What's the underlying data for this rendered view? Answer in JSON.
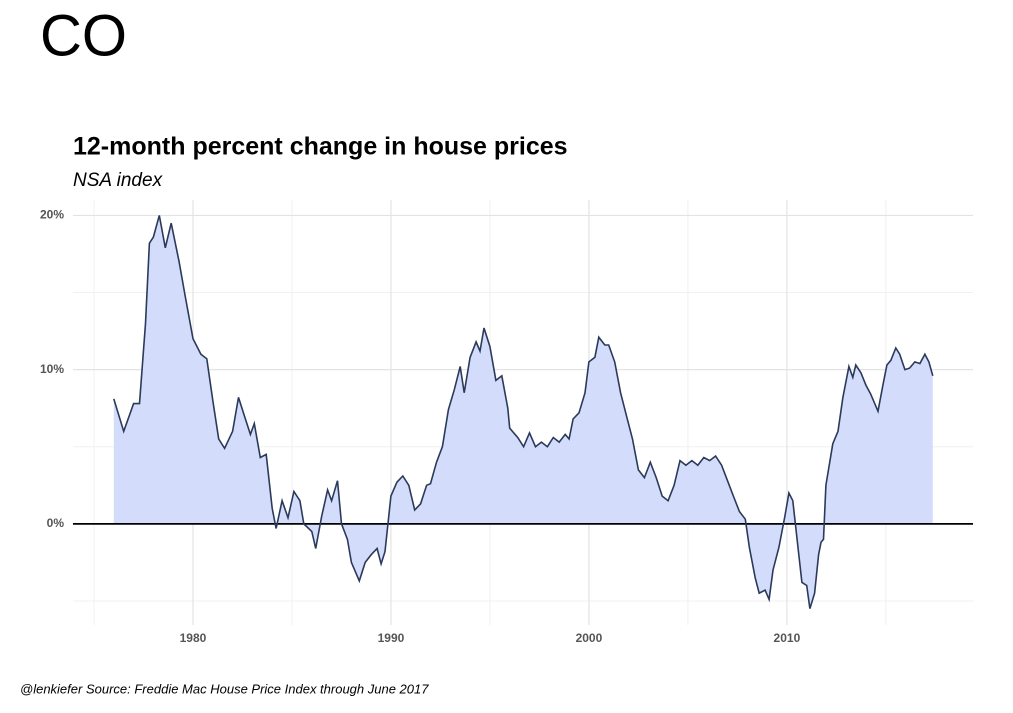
{
  "page_title": "CO",
  "chart_data": {
    "type": "area",
    "title": "12-month percent change in house prices",
    "subtitle": "NSA index",
    "caption": "@lenkiefer Source: Freddie Mac House Price Index through June 2017",
    "x": [
      1976.0,
      1976.5,
      1977.0,
      1977.3,
      1977.6,
      1977.8,
      1978.0,
      1978.3,
      1978.6,
      1978.9,
      1979.3,
      1979.6,
      1980.0,
      1980.4,
      1980.7,
      1981.0,
      1981.3,
      1981.6,
      1982.0,
      1982.3,
      1982.6,
      1982.9,
      1983.1,
      1983.4,
      1983.7,
      1984.0,
      1984.2,
      1984.5,
      1984.8,
      1985.1,
      1985.4,
      1985.6,
      1986.0,
      1986.2,
      1986.5,
      1986.8,
      1987.0,
      1987.3,
      1987.5,
      1987.8,
      1988.0,
      1988.4,
      1988.7,
      1989.0,
      1989.3,
      1989.5,
      1989.7,
      1990.0,
      1990.3,
      1990.6,
      1990.9,
      1991.2,
      1991.5,
      1991.8,
      1992.0,
      1992.3,
      1992.6,
      1992.9,
      1993.2,
      1993.5,
      1993.7,
      1994.0,
      1994.3,
      1994.5,
      1994.7,
      1995.0,
      1995.3,
      1995.6,
      1995.9,
      1996.0,
      1996.4,
      1996.7,
      1997.0,
      1997.3,
      1997.6,
      1997.9,
      1998.2,
      1998.5,
      1998.8,
      1999.0,
      1999.2,
      1999.5,
      1999.8,
      2000.0,
      2000.3,
      2000.5,
      2000.8,
      2001.0,
      2001.3,
      2001.6,
      2001.9,
      2002.2,
      2002.5,
      2002.8,
      2003.1,
      2003.4,
      2003.7,
      2004.0,
      2004.3,
      2004.6,
      2004.9,
      2005.2,
      2005.5,
      2005.8,
      2006.1,
      2006.4,
      2006.7,
      2007.0,
      2007.3,
      2007.6,
      2007.9,
      2008.1,
      2008.4,
      2008.6,
      2008.9,
      2009.1,
      2009.3,
      2009.6,
      2009.9,
      2010.1,
      2010.3,
      2010.6,
      2010.76,
      2011.0,
      2011.16,
      2011.4,
      2011.6,
      2011.72,
      2011.85,
      2011.97,
      2012.32,
      2012.58,
      2012.83,
      2013.13,
      2013.33,
      2013.48,
      2013.74,
      2013.99,
      2014.24,
      2014.6,
      2014.85,
      2015.05,
      2015.25,
      2015.5,
      2015.7,
      2015.96,
      2016.2,
      2016.46,
      2016.72,
      2016.97,
      2017.17,
      2017.37
    ],
    "series": [
      {
        "name": "CO",
        "color": "#2b3a5a",
        "fill": "#d3dcfa",
        "values": [
          8.1,
          6.0,
          7.8,
          7.8,
          13,
          18.2,
          18.6,
          20.0,
          17.9,
          19.5,
          17,
          14.8,
          12,
          11,
          10.7,
          8,
          5.5,
          4.9,
          6,
          8.2,
          7.0,
          5.8,
          6.5,
          4.3,
          4.5,
          1.0,
          -0.3,
          1.5,
          0.4,
          2.1,
          1.5,
          0,
          -0.5,
          -1.6,
          0.5,
          2.2,
          1.5,
          2.8,
          0,
          -1.0,
          -2.5,
          -3.7,
          -2.5,
          -2,
          -1.6,
          -2.6,
          -1.8,
          1.8,
          2.7,
          3.1,
          2.5,
          0.9,
          1.3,
          2.5,
          2.6,
          4.0,
          5.0,
          7.4,
          8.7,
          10.2,
          8.5,
          10.8,
          11.8,
          11.2,
          12.7,
          11.5,
          9.3,
          9.6,
          7.5,
          6.2,
          5.6,
          5.0,
          5.9,
          5.0,
          5.3,
          5.0,
          5.6,
          5.3,
          5.8,
          5.5,
          6.8,
          7.2,
          8.5,
          10.5,
          10.8,
          12.1,
          11.6,
          11.6,
          10.5,
          8.5,
          7.0,
          5.5,
          3.5,
          3.0,
          4.0,
          3.0,
          1.8,
          1.5,
          2.5,
          4.1,
          3.8,
          4.1,
          3.8,
          4.3,
          4.1,
          4.4,
          3.8,
          2.8,
          1.8,
          0.8,
          0.3,
          -1.5,
          -3.5,
          -4.5,
          -4.3,
          -4.9,
          -3.0,
          -1.5,
          0.5,
          2.0,
          1.5,
          -2,
          -3.8,
          -4.0,
          -5.5,
          -4.5,
          -2.0,
          -1.2,
          -1.0,
          2.5,
          5.2,
          6.0,
          8.2,
          10.2,
          9.5,
          10.3,
          9.8,
          9.0,
          8.4,
          7.3,
          9.0,
          10.3,
          10.6,
          11.4,
          11.0,
          10.0,
          10.1,
          10.5,
          10.4,
          11.0,
          10.5,
          9.6
        ]
      }
    ],
    "xlim": [
      1973.94,
      2019.4
    ],
    "xticks": [
      1980,
      1990,
      2000,
      2010
    ],
    "xminor": [
      1975,
      1985,
      1995,
      2005,
      2015
    ],
    "ylim": [
      -6.56,
      21.0
    ],
    "yticks": [
      {
        "value": 0,
        "label": "0%"
      },
      {
        "value": 10,
        "label": "10%"
      },
      {
        "value": 20,
        "label": "20%"
      }
    ],
    "yminor": [
      -5,
      5,
      15
    ],
    "grid": true,
    "zero_line": true
  }
}
